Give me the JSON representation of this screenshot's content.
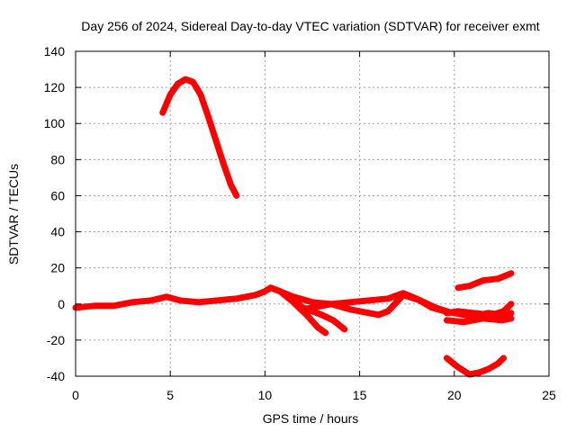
{
  "chart_data": {
    "type": "line",
    "title": "Day 256 of 2024, Sidereal Day-to-day VTEC variation (SDTVAR) for receiver exmt",
    "xlabel": "GPS time / hours",
    "ylabel": "SDTVAR / TECUs",
    "xlim": [
      0,
      25
    ],
    "ylim": [
      -40,
      140
    ],
    "xticks": [
      "0",
      "5",
      "10",
      "15",
      "20",
      "25"
    ],
    "yticks": [
      "-40",
      "-20",
      "0",
      "20",
      "40",
      "60",
      "80",
      "100",
      "120",
      "140"
    ],
    "grid": true,
    "series_color": "#ff0000",
    "series": [
      {
        "name": "arc-high",
        "points": [
          [
            4.6,
            106
          ],
          [
            5.0,
            116
          ],
          [
            5.4,
            122
          ],
          [
            5.8,
            124.5
          ],
          [
            6.2,
            123
          ],
          [
            6.6,
            116
          ],
          [
            7.0,
            104
          ],
          [
            7.4,
            91
          ],
          [
            7.8,
            78
          ],
          [
            8.2,
            66
          ],
          [
            8.5,
            60
          ]
        ]
      },
      {
        "name": "arc-baseline",
        "points": [
          [
            0,
            -2
          ],
          [
            1,
            -1
          ],
          [
            2,
            -1
          ],
          [
            3,
            1
          ],
          [
            4,
            2
          ],
          [
            4.8,
            4
          ],
          [
            5.5,
            2
          ],
          [
            6.5,
            1
          ],
          [
            7.5,
            2
          ],
          [
            8.5,
            3
          ],
          [
            9.5,
            5
          ],
          [
            10,
            7
          ],
          [
            10.3,
            9
          ],
          [
            10.8,
            7
          ],
          [
            11.5,
            4
          ],
          [
            12.5,
            1
          ],
          [
            13.5,
            0
          ],
          [
            14.5,
            1
          ],
          [
            15.5,
            2
          ],
          [
            16.5,
            3
          ],
          [
            17.3,
            6
          ],
          [
            18,
            3
          ],
          [
            18.8,
            -2
          ],
          [
            19.5,
            -4
          ],
          [
            20,
            -5
          ]
        ]
      },
      {
        "name": "arc-dip-a",
        "points": [
          [
            10.8,
            7
          ],
          [
            11.5,
            1
          ],
          [
            12.2,
            -6
          ],
          [
            12.8,
            -13
          ],
          [
            13.2,
            -16
          ]
        ]
      },
      {
        "name": "arc-dip-b",
        "points": [
          [
            11,
            6
          ],
          [
            12,
            -2
          ],
          [
            13,
            -6
          ],
          [
            13.6,
            -9
          ],
          [
            14.2,
            -14
          ]
        ]
      },
      {
        "name": "arc-mid",
        "points": [
          [
            12,
            -3
          ],
          [
            13.5,
            0
          ],
          [
            14.5,
            -3
          ],
          [
            15.5,
            -5
          ],
          [
            16,
            -6
          ],
          [
            16.5,
            -4
          ],
          [
            17.3,
            5
          ],
          [
            18.2,
            2
          ],
          [
            19,
            -2
          ],
          [
            19.6,
            -4
          ]
        ]
      },
      {
        "name": "arc-late-upper",
        "points": [
          [
            20.2,
            9
          ],
          [
            20.8,
            10
          ],
          [
            21.5,
            13
          ],
          [
            22.3,
            14
          ],
          [
            23,
            17
          ]
        ]
      },
      {
        "name": "arc-late-zero-a",
        "points": [
          [
            19.6,
            -5
          ],
          [
            20.2,
            -4
          ],
          [
            21,
            -5
          ],
          [
            22,
            -6
          ],
          [
            22.6,
            -4
          ],
          [
            23,
            0
          ]
        ]
      },
      {
        "name": "arc-late-zero-b",
        "points": [
          [
            19.6,
            -9
          ],
          [
            20.5,
            -10
          ],
          [
            21.5,
            -8
          ],
          [
            22.5,
            -9
          ],
          [
            23,
            -8
          ]
        ]
      },
      {
        "name": "arc-late-zero-c",
        "points": [
          [
            20,
            -5
          ],
          [
            21,
            -7
          ],
          [
            21.8,
            -5
          ],
          [
            22.5,
            -6
          ],
          [
            23,
            -5
          ]
        ]
      },
      {
        "name": "arc-late-low",
        "points": [
          [
            19.6,
            -30
          ],
          [
            20.2,
            -35
          ],
          [
            20.8,
            -39
          ],
          [
            21.3,
            -38
          ],
          [
            21.8,
            -36
          ],
          [
            22.3,
            -33
          ],
          [
            22.6,
            -30
          ]
        ]
      }
    ]
  }
}
